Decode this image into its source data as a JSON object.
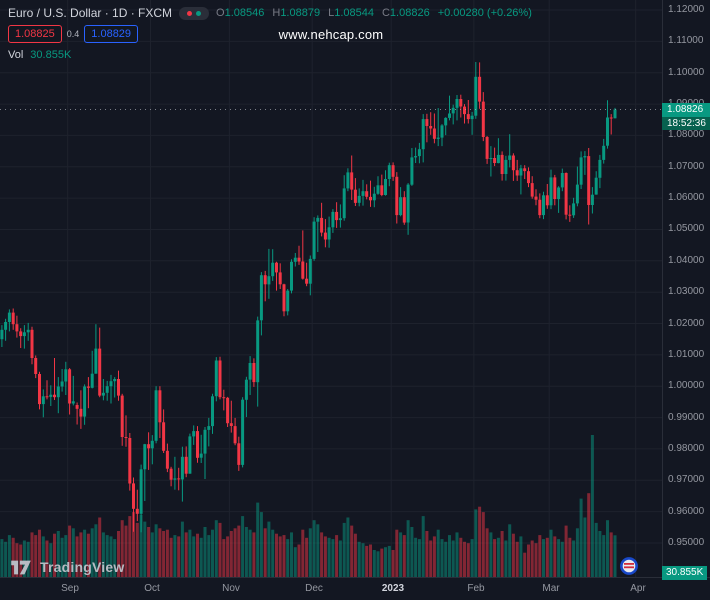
{
  "colors": {
    "bg": "#131722",
    "grid": "#1e222d",
    "axis_text": "#9598a1",
    "text_bright": "#d1d4dc",
    "up": "#089981",
    "down": "#f23645",
    "buy_blue": "#2962ff",
    "sell_red": "#f23645",
    "muted": "#787b86",
    "price_line": "#b2b5be"
  },
  "legend": {
    "title": "Euro / U.S. Dollar · 1D · FXCM",
    "toggle_icon": "red-green-dots-pill",
    "ohlc": {
      "o_label": "O",
      "o_value": "1.08546",
      "h_label": "H",
      "h_value": "1.08879",
      "l_label": "L",
      "l_value": "1.08544",
      "c_label": "C",
      "c_value": "1.08826",
      "change": "+0.00280 (+0.26%)"
    },
    "quote": {
      "sell": "1.08825",
      "spread": "0.4",
      "buy": "1.08829"
    },
    "volume_row": {
      "label": "Vol",
      "value": "30.855K"
    }
  },
  "watermark": "www.nehcap.com",
  "last_trade": {
    "price": "1.08826",
    "countdown": "18:52:36",
    "volume": "30.855K"
  },
  "footer": {
    "logo_text": "TradingView",
    "broker_icon": "blue-red-roundel"
  },
  "chart_data": {
    "type": "candlestick",
    "title": "Euro / U.S. Dollar",
    "symbol": "EUR/USD",
    "interval": "1D",
    "exchange": "FXCM",
    "ylim": [
      0.95,
      1.12
    ],
    "grid": true,
    "volume_pane": true,
    "legend_position": "top-left",
    "y_ticks": [
      "1.12000",
      "1.11000",
      "1.10000",
      "1.09000",
      "1.08000",
      "1.07000",
      "1.06000",
      "1.05000",
      "1.04000",
      "1.03000",
      "1.02000",
      "1.01000",
      "1.00000",
      "0.99000",
      "0.98000",
      "0.97000",
      "0.96000",
      "0.95000"
    ],
    "months": [
      {
        "label": "Sep",
        "index": 18
      },
      {
        "label": "Oct",
        "index": 40
      },
      {
        "label": "Nov",
        "index": 61
      },
      {
        "label": "Dec",
        "index": 83
      },
      {
        "label": "2023",
        "index": 104
      },
      {
        "label": "Feb",
        "index": 126
      },
      {
        "label": "Mar",
        "index": 146
      },
      {
        "label": "Apr",
        "index": 169
      }
    ],
    "candles_format": [
      "open",
      "high",
      "low",
      "close",
      "volume_k"
    ],
    "candles": [
      [
        1.015,
        1.0195,
        1.0125,
        1.018,
        28
      ],
      [
        1.018,
        1.0215,
        1.0145,
        1.0205,
        26
      ],
      [
        1.0205,
        1.0245,
        1.0175,
        1.0235,
        31
      ],
      [
        1.0235,
        1.0248,
        1.018,
        1.0198,
        29
      ],
      [
        1.0198,
        1.0225,
        1.0155,
        1.0175,
        25
      ],
      [
        1.0175,
        1.0185,
        1.0122,
        1.016,
        24
      ],
      [
        1.016,
        1.0195,
        1.012,
        1.0172,
        27
      ],
      [
        1.0172,
        1.0202,
        1.0145,
        1.018,
        26
      ],
      [
        1.018,
        1.019,
        1.007,
        1.009,
        33
      ],
      [
        1.009,
        1.0098,
        1.0026,
        1.0039,
        31
      ],
      [
        1.0039,
        1.0046,
        0.9926,
        0.9943,
        35
      ],
      [
        0.9943,
        0.999,
        0.9901,
        0.9968,
        30
      ],
      [
        0.9968,
        1.0019,
        0.9958,
        0.9966,
        27
      ],
      [
        0.9966,
        1.0003,
        0.9937,
        0.9973,
        25
      ],
      [
        0.9973,
        1.009,
        0.9956,
        0.9965,
        32
      ],
      [
        0.9965,
        1.0029,
        0.9914,
        0.9999,
        34
      ],
      [
        0.9999,
        1.0055,
        0.9983,
        1.0015,
        29
      ],
      [
        1.0015,
        1.0078,
        0.9972,
        1.0054,
        31
      ],
      [
        1.0054,
        1.0058,
        0.991,
        0.9945,
        38
      ],
      [
        0.9945,
        1.0033,
        0.9939,
        0.9952,
        36
      ],
      [
        0.994,
        0.9948,
        0.9878,
        0.9928,
        30
      ],
      [
        0.9928,
        0.9987,
        0.9864,
        0.9903,
        33
      ],
      [
        0.9903,
        1.0006,
        0.9877,
        0.9999,
        35
      ],
      [
        0.9999,
        1.0029,
        0.993,
        0.9995,
        32
      ],
      [
        0.9995,
        1.0113,
        0.9993,
        1.004,
        36
      ],
      [
        1.004,
        1.0198,
        1.004,
        1.012,
        39
      ],
      [
        1.012,
        1.0187,
        0.9965,
        0.997,
        44
      ],
      [
        0.997,
        1.0023,
        0.9955,
        0.9979,
        33
      ],
      [
        0.9979,
        1.0017,
        0.9954,
        1.0,
        31
      ],
      [
        1.0,
        1.0036,
        0.9945,
        1.0016,
        30
      ],
      [
        1.0016,
        1.0029,
        0.9964,
        1.0023,
        28
      ],
      [
        1.0023,
        1.005,
        0.9954,
        0.997,
        34
      ],
      [
        0.997,
        0.9976,
        0.981,
        0.9838,
        42
      ],
      [
        0.9838,
        0.9907,
        0.9807,
        0.9835,
        38
      ],
      [
        0.9835,
        0.9851,
        0.9667,
        0.969,
        45
      ],
      [
        0.969,
        0.9709,
        0.9536,
        0.9609,
        48
      ],
      [
        0.9609,
        0.967,
        0.957,
        0.9593,
        40
      ],
      [
        0.9593,
        0.975,
        0.9534,
        0.9735,
        46
      ],
      [
        0.9735,
        0.9816,
        0.9634,
        0.9815,
        41
      ],
      [
        0.9815,
        0.9853,
        0.9733,
        0.9802,
        37
      ],
      [
        0.9802,
        0.9844,
        0.9751,
        0.9826,
        33
      ],
      [
        0.9826,
        1.0,
        0.9818,
        0.9987,
        39
      ],
      [
        0.9987,
        1.0,
        0.9835,
        0.9885,
        36
      ],
      [
        0.9885,
        0.9926,
        0.9787,
        0.9794,
        34
      ],
      [
        0.9794,
        0.9817,
        0.9726,
        0.9737,
        35
      ],
      [
        0.9737,
        0.9743,
        0.9681,
        0.9702,
        29
      ],
      [
        0.9702,
        0.9775,
        0.967,
        0.9706,
        31
      ],
      [
        0.9706,
        0.974,
        0.9668,
        0.9703,
        30
      ],
      [
        0.9703,
        0.9807,
        0.9632,
        0.9775,
        41
      ],
      [
        0.9775,
        0.9808,
        0.971,
        0.9721,
        33
      ],
      [
        0.9721,
        0.9849,
        0.9721,
        0.984,
        35
      ],
      [
        0.984,
        0.9875,
        0.9813,
        0.9857,
        30
      ],
      [
        0.9857,
        0.9873,
        0.9756,
        0.9772,
        32
      ],
      [
        0.9772,
        0.9845,
        0.9755,
        0.9785,
        29
      ],
      [
        0.9785,
        0.987,
        0.9704,
        0.9861,
        37
      ],
      [
        0.9861,
        0.9899,
        0.9808,
        0.9873,
        31
      ],
      [
        0.9873,
        0.9976,
        0.9848,
        0.9968,
        35
      ],
      [
        0.9968,
        1.0093,
        0.9952,
        1.0082,
        42
      ],
      [
        1.0082,
        1.0094,
        0.9958,
        0.9965,
        40
      ],
      [
        0.9965,
        0.9989,
        0.9923,
        0.9963,
        28
      ],
      [
        0.9963,
        0.9966,
        0.987,
        0.9882,
        30
      ],
      [
        0.9882,
        0.9954,
        0.9852,
        0.9873,
        34
      ],
      [
        0.9873,
        0.9899,
        0.9812,
        0.9818,
        36
      ],
      [
        0.9818,
        0.9839,
        0.973,
        0.9749,
        38
      ],
      [
        0.9749,
        0.9965,
        0.9741,
        0.9957,
        45
      ],
      [
        0.9957,
        1.003,
        0.9902,
        1.0021,
        37
      ],
      [
        1.0021,
        1.0096,
        0.9972,
        1.0074,
        35
      ],
      [
        1.0074,
        1.0089,
        0.9998,
        1.0013,
        33
      ],
      [
        1.0013,
        1.0222,
        0.9935,
        1.021,
        55
      ],
      [
        1.021,
        1.0364,
        1.0162,
        1.0354,
        48
      ],
      [
        1.0354,
        1.0368,
        1.0271,
        1.0325,
        36
      ],
      [
        1.0325,
        1.0438,
        1.0279,
        1.0351,
        41
      ],
      [
        1.0351,
        1.0437,
        1.0336,
        1.0394,
        35
      ],
      [
        1.0394,
        1.0397,
        1.0305,
        1.0363,
        32
      ],
      [
        1.0363,
        1.0392,
        1.031,
        1.0325,
        30
      ],
      [
        1.0325,
        1.0327,
        1.0223,
        1.0239,
        31
      ],
      [
        1.0239,
        1.031,
        1.0226,
        1.0305,
        28
      ],
      [
        1.0305,
        1.0405,
        1.0296,
        1.0397,
        33
      ],
      [
        1.0397,
        1.0425,
        1.0382,
        1.041,
        22
      ],
      [
        1.041,
        1.0448,
        1.0387,
        1.0398,
        24
      ],
      [
        1.0398,
        1.0497,
        1.034,
        1.0343,
        35
      ],
      [
        1.0343,
        1.0394,
        1.0319,
        1.0327,
        29
      ],
      [
        1.0327,
        1.0417,
        1.029,
        1.0406,
        36
      ],
      [
        1.0406,
        1.0539,
        1.04,
        1.0525,
        42
      ],
      [
        1.0525,
        1.0545,
        1.0428,
        1.0537,
        39
      ],
      [
        1.0537,
        1.0585,
        1.0478,
        1.049,
        33
      ],
      [
        1.049,
        1.0533,
        1.0443,
        1.0468,
        30
      ],
      [
        1.0468,
        1.0541,
        1.0442,
        1.0507,
        29
      ],
      [
        1.0507,
        1.0565,
        1.0489,
        1.0556,
        28
      ],
      [
        1.0556,
        1.0587,
        1.0505,
        1.053,
        31
      ],
      [
        1.053,
        1.058,
        1.0506,
        1.0536,
        27
      ],
      [
        1.0536,
        1.0673,
        1.0528,
        1.0631,
        40
      ],
      [
        1.0631,
        1.0695,
        1.0622,
        1.0682,
        44
      ],
      [
        1.0682,
        1.0736,
        1.0594,
        1.0627,
        38
      ],
      [
        1.0627,
        1.0664,
        1.0575,
        1.0585,
        32
      ],
      [
        1.0585,
        1.0631,
        1.0574,
        1.0607,
        26
      ],
      [
        1.0607,
        1.0658,
        1.0576,
        1.0622,
        25
      ],
      [
        1.0622,
        1.0644,
        1.0596,
        1.0604,
        23
      ],
      [
        1.0604,
        1.0656,
        1.0572,
        1.0593,
        24
      ],
      [
        1.0593,
        1.0636,
        1.0571,
        1.0614,
        20
      ],
      [
        1.0614,
        1.067,
        1.0611,
        1.0641,
        19
      ],
      [
        1.0641,
        1.0675,
        1.0606,
        1.061,
        21
      ],
      [
        1.061,
        1.0689,
        1.0608,
        1.0661,
        22
      ],
      [
        1.0661,
        1.0713,
        1.0638,
        1.0705,
        23
      ],
      [
        1.0705,
        1.0714,
        1.0655,
        1.0668,
        20
      ],
      [
        1.0668,
        1.0683,
        1.0519,
        1.0546,
        35
      ],
      [
        1.0546,
        1.0635,
        1.0542,
        1.0603,
        33
      ],
      [
        1.0603,
        1.0622,
        1.0515,
        1.0522,
        31
      ],
      [
        1.0522,
        1.0648,
        1.0483,
        1.0643,
        42
      ],
      [
        1.0643,
        1.076,
        1.0639,
        1.073,
        37
      ],
      [
        1.073,
        1.0761,
        1.0712,
        1.0734,
        29
      ],
      [
        1.0734,
        1.0776,
        1.0711,
        1.0756,
        28
      ],
      [
        1.0756,
        1.0868,
        1.0714,
        1.0852,
        45
      ],
      [
        1.0852,
        1.0869,
        1.0778,
        1.083,
        34
      ],
      [
        1.083,
        1.0874,
        1.0802,
        1.0822,
        27
      ],
      [
        1.0822,
        1.087,
        1.0775,
        1.0789,
        30
      ],
      [
        1.0789,
        1.0887,
        1.0766,
        1.0793,
        35
      ],
      [
        1.0793,
        1.0836,
        1.0766,
        1.0832,
        28
      ],
      [
        1.0832,
        1.0858,
        1.0801,
        1.0856,
        26
      ],
      [
        1.0856,
        1.0927,
        1.0848,
        1.087,
        31
      ],
      [
        1.087,
        1.0898,
        1.0835,
        1.0888,
        27
      ],
      [
        1.0888,
        1.0929,
        1.0848,
        1.0916,
        33
      ],
      [
        1.0916,
        1.093,
        1.0857,
        1.0892,
        29
      ],
      [
        1.0892,
        1.09,
        1.0838,
        1.0868,
        26
      ],
      [
        1.0868,
        1.0913,
        1.0838,
        1.0852,
        25
      ],
      [
        1.0852,
        1.0875,
        1.0802,
        1.0863,
        28
      ],
      [
        1.0863,
        1.1034,
        1.0853,
        1.0987,
        50
      ],
      [
        1.0987,
        1.1033,
        1.0885,
        1.0908,
        52
      ],
      [
        1.0908,
        1.0938,
        1.0782,
        1.0795,
        48
      ],
      [
        1.0795,
        1.0798,
        1.0709,
        1.0725,
        36
      ],
      [
        1.0725,
        1.0766,
        1.0669,
        1.0728,
        33
      ],
      [
        1.0728,
        1.0761,
        1.0702,
        1.0712,
        28
      ],
      [
        1.0712,
        1.0791,
        1.0711,
        1.0738,
        29
      ],
      [
        1.0738,
        1.0749,
        1.0656,
        1.0677,
        34
      ],
      [
        1.0677,
        1.0735,
        1.0656,
        1.0722,
        27
      ],
      [
        1.0722,
        1.0804,
        1.0698,
        1.0736,
        39
      ],
      [
        1.0736,
        1.0743,
        1.0655,
        1.0689,
        32
      ],
      [
        1.0689,
        1.0722,
        1.0655,
        1.0672,
        26
      ],
      [
        1.0672,
        1.0706,
        1.0612,
        1.0695,
        30
      ],
      [
        1.0695,
        1.0705,
        1.0661,
        1.0686,
        18
      ],
      [
        1.0686,
        1.0698,
        1.0635,
        1.0648,
        24
      ],
      [
        1.0648,
        1.067,
        1.0598,
        1.0605,
        27
      ],
      [
        1.0605,
        1.0628,
        1.0577,
        1.0595,
        25
      ],
      [
        1.0595,
        1.0615,
        1.0536,
        1.0546,
        31
      ],
      [
        1.0546,
        1.062,
        1.0533,
        1.0609,
        28
      ],
      [
        1.0609,
        1.0645,
        1.0566,
        1.0577,
        29
      ],
      [
        1.0577,
        1.0691,
        1.0565,
        1.0666,
        35
      ],
      [
        1.0666,
        1.0674,
        1.0577,
        1.0597,
        30
      ],
      [
        1.0597,
        1.0638,
        1.0553,
        1.0634,
        28
      ],
      [
        1.0634,
        1.0694,
        1.0622,
        1.068,
        26
      ],
      [
        1.068,
        1.0682,
        1.0532,
        1.0547,
        38
      ],
      [
        1.0547,
        1.0577,
        1.0524,
        1.0545,
        29
      ],
      [
        1.0545,
        1.0601,
        1.0537,
        1.0583,
        27
      ],
      [
        1.0583,
        1.0701,
        1.0574,
        1.0643,
        36
      ],
      [
        1.0643,
        1.0749,
        1.0629,
        1.073,
        58
      ],
      [
        1.073,
        1.075,
        1.0674,
        1.0734,
        44
      ],
      [
        1.0734,
        1.076,
        1.0516,
        1.0578,
        62
      ],
      [
        1.0578,
        1.0635,
        1.0551,
        1.0611,
        105
      ],
      [
        1.0611,
        1.0686,
        1.0611,
        1.0665,
        40
      ],
      [
        1.0665,
        1.0738,
        1.0632,
        1.0722,
        34
      ],
      [
        1.0722,
        1.0789,
        1.071,
        1.0767,
        31
      ],
      [
        1.0767,
        1.0912,
        1.0758,
        1.0857,
        42
      ],
      [
        1.0857,
        1.0868,
        1.0803,
        1.08546,
        33
      ],
      [
        1.08546,
        1.08879,
        1.08544,
        1.08826,
        30.855
      ]
    ]
  }
}
